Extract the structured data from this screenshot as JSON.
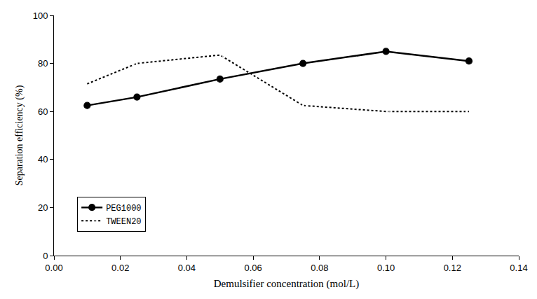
{
  "chart_data": {
    "type": "line",
    "x_label": "Demulsifier concentration (mol/L)",
    "y_label": "Separation efficiency (%)",
    "x": [
      0.01,
      0.025,
      0.05,
      0.075,
      0.1,
      0.125
    ],
    "series": [
      {
        "name": "PEG1000",
        "color": "#000000",
        "marker": "circle",
        "line_style": "solid",
        "values": [
          62.5,
          66,
          73.5,
          80,
          85,
          81
        ]
      },
      {
        "name": "TWEEN20",
        "color": "#000000",
        "marker": "circle-open",
        "line_style": "dot",
        "values": [
          71.5,
          80,
          83.5,
          62.5,
          60,
          60
        ]
      }
    ],
    "xlim": [
      0,
      0.14
    ],
    "xticks": [
      {
        "value": 0,
        "label": "0.00"
      },
      {
        "value": 0.02,
        "label": "0.02"
      },
      {
        "value": 0.04,
        "label": "0.04"
      },
      {
        "value": 0.06,
        "label": "0.06"
      },
      {
        "value": 0.08,
        "label": "0.08"
      },
      {
        "value": 0.1,
        "label": "0.10"
      },
      {
        "value": 0.12,
        "label": "0.12"
      },
      {
        "value": 0.14,
        "label": "0.14"
      }
    ],
    "ylim": [
      0,
      100
    ],
    "yticks": [
      0,
      20,
      40,
      60,
      80,
      100
    ],
    "grid": false,
    "legend": "lower left"
  }
}
